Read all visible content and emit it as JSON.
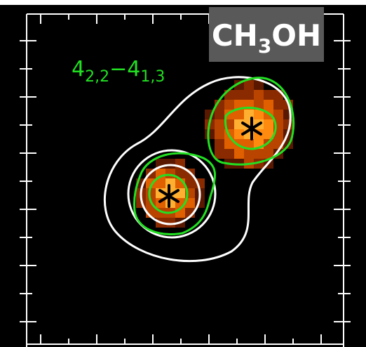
{
  "label": {
    "molecule": [
      "CH",
      "3",
      "OH"
    ]
  },
  "transition": [
    "4",
    "2,2",
    "−4",
    "1,3"
  ]
}
